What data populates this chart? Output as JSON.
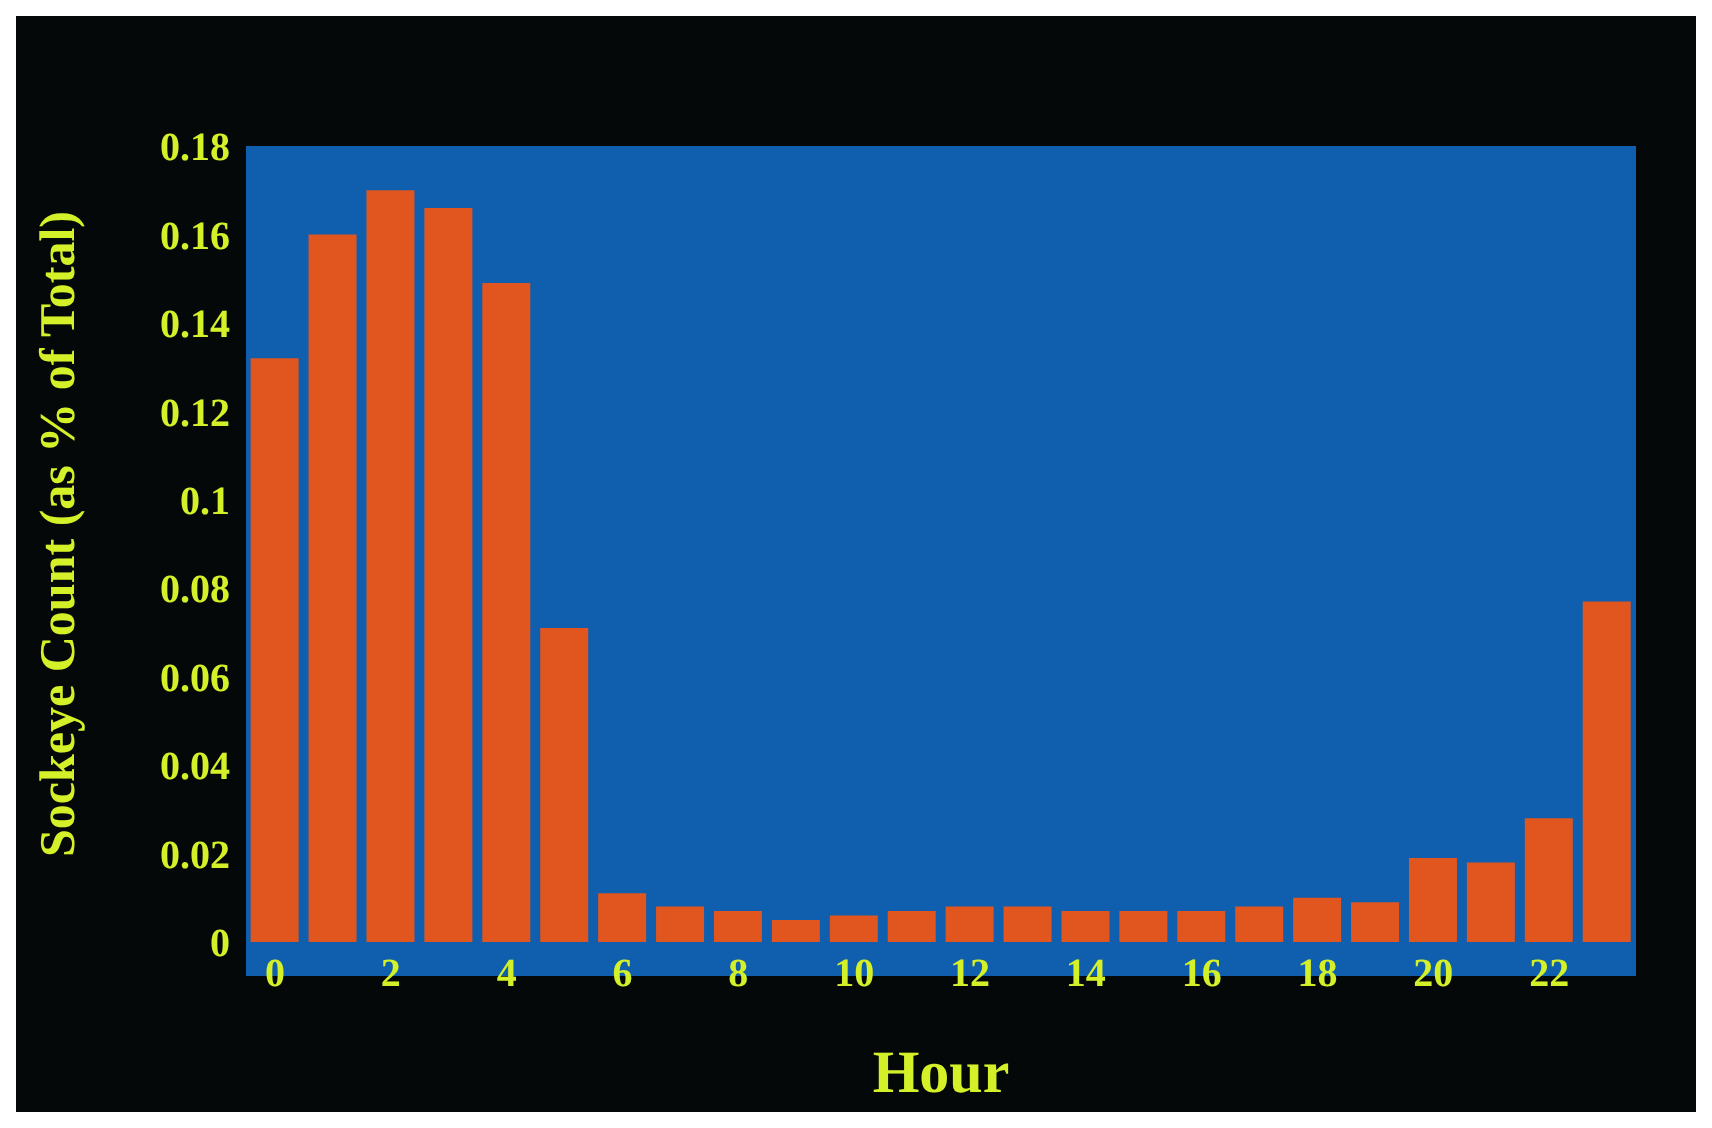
{
  "chart_data": {
    "type": "bar",
    "xlabel": "Hour",
    "ylabel": "Sockeye Count (as % of Total)",
    "categories": [
      "0",
      null,
      "2",
      null,
      "4",
      null,
      "6",
      null,
      "8",
      null,
      "10",
      null,
      "12",
      null,
      "14",
      null,
      "16",
      null,
      "18",
      null,
      "20",
      null,
      "22",
      null
    ],
    "values": [
      0.132,
      0.16,
      0.17,
      0.166,
      0.149,
      0.071,
      0.011,
      0.008,
      0.007,
      0.005,
      0.006,
      0.007,
      0.008,
      0.008,
      0.007,
      0.007,
      0.007,
      0.008,
      0.01,
      0.009,
      0.019,
      0.018,
      0.028,
      0.077
    ],
    "color": "#e0561e",
    "ylim": [
      0,
      0.18
    ],
    "yticks": [
      0,
      0.02,
      0.04,
      0.06,
      0.08,
      0.1,
      0.12,
      0.14,
      0.16,
      0.18
    ],
    "grid": false
  }
}
